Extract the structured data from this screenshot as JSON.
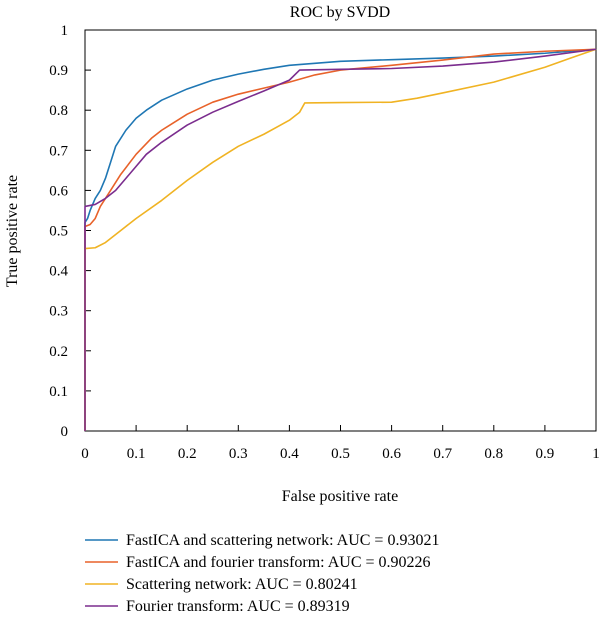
{
  "chart_data": {
    "type": "line",
    "title": "ROC by SVDD",
    "xlabel": "False positive rate",
    "ylabel": "True positive rate",
    "xlim": [
      0,
      1
    ],
    "ylim": [
      0,
      1
    ],
    "xticks": [
      "0",
      "0.1",
      "0.2",
      "0.3",
      "0.4",
      "0.5",
      "0.6",
      "0.7",
      "0.8",
      "0.9",
      "1"
    ],
    "yticks": [
      "0",
      "0.1",
      "0.2",
      "0.3",
      "0.4",
      "0.5",
      "0.6",
      "0.7",
      "0.8",
      "0.9",
      "1"
    ],
    "grid": false,
    "legend_position": "bottom",
    "series": [
      {
        "name": "FastICA and scattering network: AUC = 0.93021",
        "color": "#1f77b4",
        "points": [
          [
            0,
            0
          ],
          [
            0,
            0.52
          ],
          [
            0.005,
            0.53
          ],
          [
            0.01,
            0.55
          ],
          [
            0.02,
            0.58
          ],
          [
            0.03,
            0.6
          ],
          [
            0.04,
            0.63
          ],
          [
            0.05,
            0.67
          ],
          [
            0.06,
            0.71
          ],
          [
            0.08,
            0.75
          ],
          [
            0.1,
            0.78
          ],
          [
            0.12,
            0.8
          ],
          [
            0.15,
            0.825
          ],
          [
            0.2,
            0.853
          ],
          [
            0.25,
            0.875
          ],
          [
            0.3,
            0.89
          ],
          [
            0.35,
            0.902
          ],
          [
            0.4,
            0.912
          ],
          [
            0.5,
            0.922
          ],
          [
            0.6,
            0.926
          ],
          [
            0.7,
            0.93
          ],
          [
            0.8,
            0.935
          ],
          [
            0.9,
            0.942
          ],
          [
            1,
            0.952
          ]
        ]
      },
      {
        "name": "FastICA and fourier transform: AUC = 0.90226",
        "color": "#e8622a",
        "points": [
          [
            0,
            0
          ],
          [
            0,
            0.51
          ],
          [
            0.01,
            0.515
          ],
          [
            0.02,
            0.53
          ],
          [
            0.03,
            0.56
          ],
          [
            0.05,
            0.6
          ],
          [
            0.07,
            0.64
          ],
          [
            0.1,
            0.69
          ],
          [
            0.13,
            0.73
          ],
          [
            0.15,
            0.75
          ],
          [
            0.2,
            0.79
          ],
          [
            0.25,
            0.82
          ],
          [
            0.3,
            0.84
          ],
          [
            0.35,
            0.855
          ],
          [
            0.4,
            0.87
          ],
          [
            0.45,
            0.888
          ],
          [
            0.5,
            0.9
          ],
          [
            0.6,
            0.912
          ],
          [
            0.7,
            0.925
          ],
          [
            0.8,
            0.94
          ],
          [
            0.9,
            0.947
          ],
          [
            1,
            0.952
          ]
        ]
      },
      {
        "name": "Scattering network: AUC = 0.80241",
        "color": "#f0b323",
        "points": [
          [
            0,
            0
          ],
          [
            0,
            0.455
          ],
          [
            0.02,
            0.457
          ],
          [
            0.04,
            0.47
          ],
          [
            0.07,
            0.5
          ],
          [
            0.1,
            0.53
          ],
          [
            0.15,
            0.575
          ],
          [
            0.2,
            0.625
          ],
          [
            0.25,
            0.67
          ],
          [
            0.3,
            0.71
          ],
          [
            0.35,
            0.74
          ],
          [
            0.4,
            0.775
          ],
          [
            0.42,
            0.795
          ],
          [
            0.43,
            0.818
          ],
          [
            0.5,
            0.819
          ],
          [
            0.6,
            0.82
          ],
          [
            0.65,
            0.83
          ],
          [
            0.7,
            0.843
          ],
          [
            0.8,
            0.87
          ],
          [
            0.9,
            0.907
          ],
          [
            0.95,
            0.93
          ],
          [
            1,
            0.952
          ]
        ]
      },
      {
        "name": "Fourier transform: AUC = 0.89319",
        "color": "#7b2d8e",
        "points": [
          [
            0,
            0
          ],
          [
            0,
            0.56
          ],
          [
            0.02,
            0.565
          ],
          [
            0.04,
            0.58
          ],
          [
            0.06,
            0.6
          ],
          [
            0.08,
            0.63
          ],
          [
            0.1,
            0.66
          ],
          [
            0.12,
            0.69
          ],
          [
            0.15,
            0.72
          ],
          [
            0.2,
            0.763
          ],
          [
            0.25,
            0.795
          ],
          [
            0.3,
            0.822
          ],
          [
            0.35,
            0.848
          ],
          [
            0.4,
            0.875
          ],
          [
            0.42,
            0.9
          ],
          [
            0.5,
            0.902
          ],
          [
            0.6,
            0.904
          ],
          [
            0.7,
            0.91
          ],
          [
            0.8,
            0.92
          ],
          [
            0.9,
            0.935
          ],
          [
            1,
            0.952
          ]
        ]
      }
    ]
  }
}
